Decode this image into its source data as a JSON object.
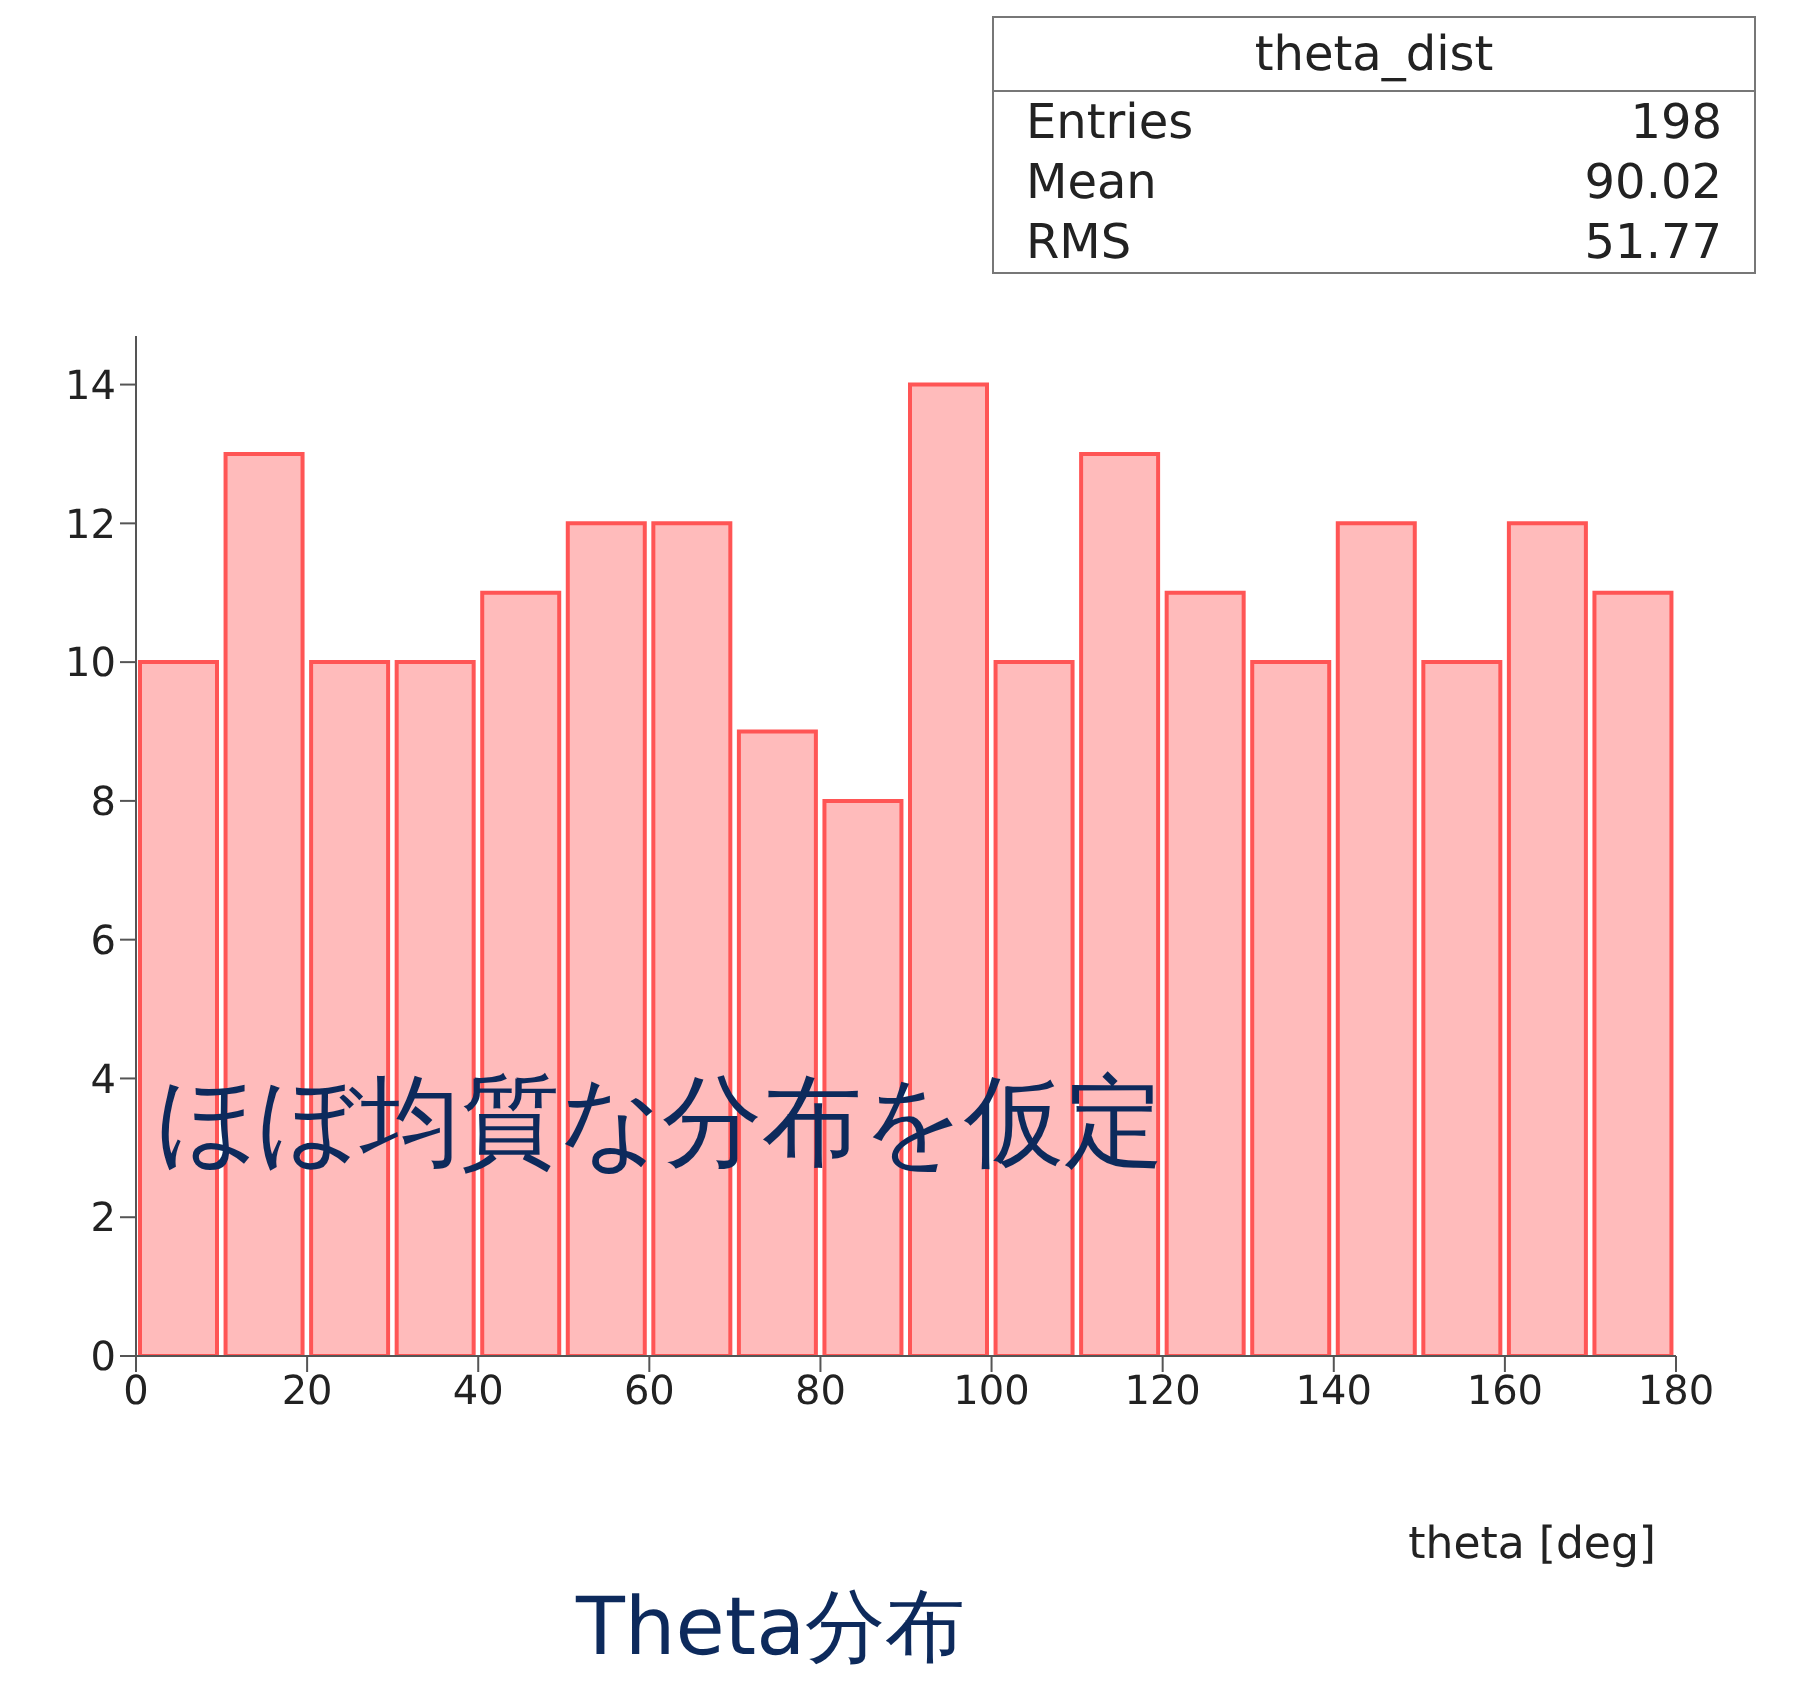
{
  "chart_data": {
    "type": "histogram",
    "title": "theta_dist",
    "xlabel": "theta [deg]",
    "bins": [
      0,
      10,
      20,
      30,
      40,
      50,
      60,
      70,
      80,
      90,
      100,
      110,
      120,
      130,
      140,
      150,
      160,
      170,
      180
    ],
    "values": [
      10,
      13,
      10,
      10,
      11,
      12,
      12,
      9,
      8,
      14,
      10,
      13,
      11,
      10,
      12,
      10,
      12,
      11
    ],
    "color": "#ffbbbb",
    "xlim": [
      0,
      180
    ],
    "xticks": [
      0,
      20,
      40,
      60,
      80,
      100,
      120,
      140,
      160,
      180
    ],
    "ylim": [
      0,
      14.7
    ],
    "yticks": [
      0,
      2,
      4,
      6,
      8,
      10,
      12,
      14
    ],
    "grid": false,
    "legend": false,
    "annotations": [
      "Entries 198",
      "Mean 90.02",
      "RMS 51.77",
      "ほぼ均質な分布を仮定",
      "Theta分布"
    ]
  }
}
